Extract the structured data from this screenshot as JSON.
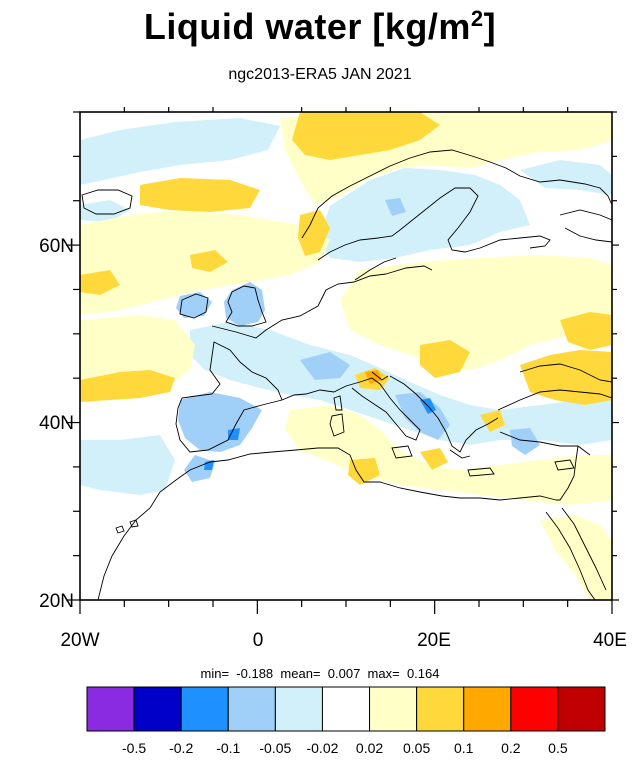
{
  "title": "Liquid water  [kg/m",
  "title_sup": "2",
  "title_close": "]",
  "subtitle": "ngc2013-ERA5 JAN 2021",
  "stats": {
    "min_label": "min=",
    "min_value": "-0.188",
    "mean_label": "mean=",
    "mean_value": "0.007",
    "max_label": "max=",
    "max_value": "0.164"
  },
  "axes": {
    "x_ticks": [
      "20W",
      "0",
      "20E",
      "40E"
    ],
    "y_ticks": [
      "60N",
      "40N",
      "20N"
    ]
  },
  "colorbar": {
    "colors": [
      "#8a2be2",
      "#0000c8",
      "#1e90ff",
      "#a0cff8",
      "#d2f0fa",
      "#ffffff",
      "#ffffc8",
      "#ffd83c",
      "#ffa800",
      "#ff0000",
      "#c00000"
    ],
    "labels": [
      "-0.5",
      "-0.2",
      "-0.1",
      "-0.05",
      "-0.02",
      "0.02",
      "0.05",
      "0.1",
      "0.2",
      "0.5"
    ]
  }
}
